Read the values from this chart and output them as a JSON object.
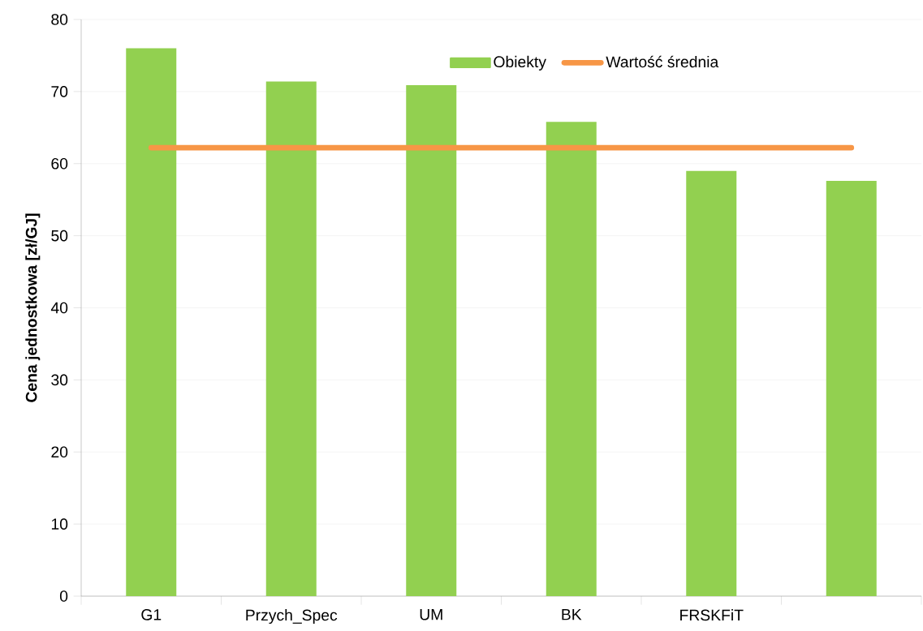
{
  "chart_data": {
    "type": "bar",
    "ylabel": "**Cena jednostkowa [zł/GJ]**",
    "categories": [
      "G1",
      "Przych_Spec",
      "UM",
      "BK",
      "FRSKFiT",
      null
    ],
    "series": [
      {
        "name": "Obiekty",
        "color": "#92d050",
        "values": [
          76.0,
          71.4,
          70.9,
          65.8,
          59.0,
          57.6
        ]
      },
      {
        "name": "Wartość średnia",
        "type": "line",
        "color": "#f79646",
        "values": [
          62.2,
          62.2,
          62.2,
          62.2,
          62.2,
          62.2
        ]
      }
    ],
    "ylim": [
      0,
      80
    ],
    "yticks": [
      0,
      10,
      20,
      30,
      40,
      50,
      60,
      70,
      80
    ],
    "grid": "y",
    "legend": "top"
  }
}
